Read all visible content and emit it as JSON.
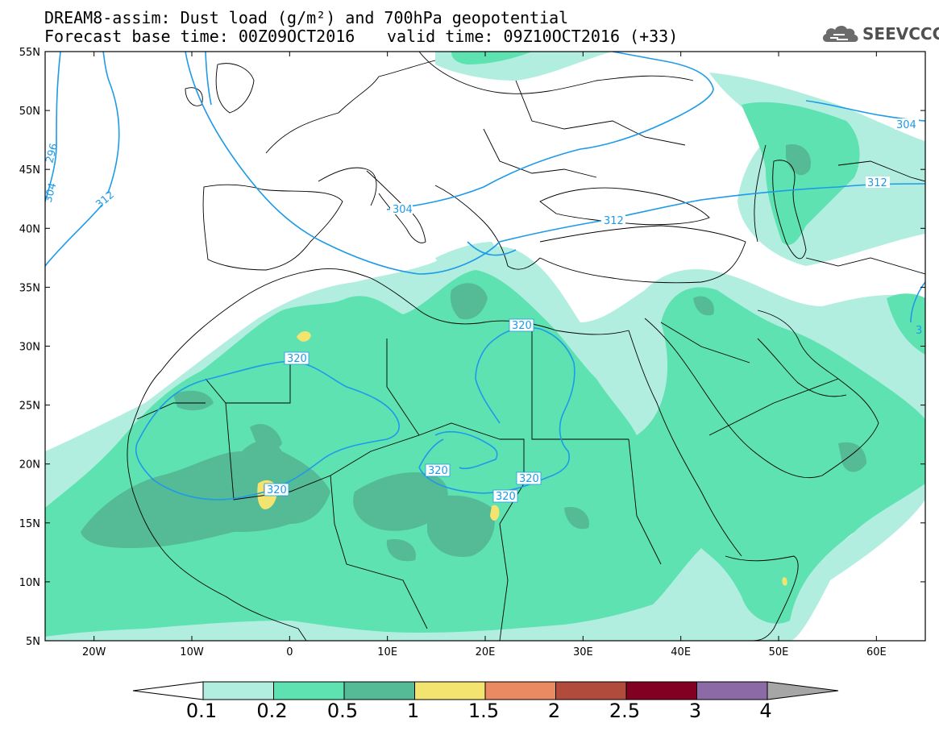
{
  "title": {
    "line1": "DREAM8-assim: Dust load (g/m²) and 700hPa geopotential",
    "line2_left": "Forecast base time: 00Z09OCT2016",
    "line2_right": "valid time: 09Z10OCT2016 (+33)"
  },
  "logo": {
    "text": "SEEVCCC",
    "icon": "cloud-icon"
  },
  "map": {
    "lon_range": [
      -25,
      65
    ],
    "lat_range": [
      5,
      55
    ],
    "lat_ticks": [
      "5N",
      "10N",
      "15N",
      "20N",
      "25N",
      "30N",
      "35N",
      "40N",
      "45N",
      "50N",
      "55N"
    ],
    "lon_ticks": [
      "20W",
      "10W",
      "0",
      "10E",
      "20E",
      "30E",
      "40E",
      "50E",
      "60E"
    ],
    "contour_labels": [
      "304",
      "312",
      "320",
      "320",
      "320",
      "320",
      "320",
      "312",
      "304",
      "312",
      "296",
      "304",
      "3"
    ]
  },
  "colorbar": {
    "labels": [
      "0.1",
      "0.2",
      "0.5",
      "1",
      "1.5",
      "2",
      "2.5",
      "3",
      "4"
    ],
    "colors": [
      "#ffffff",
      "#b2eee0",
      "#5ee2b1",
      "#55ba96",
      "#f3e46f",
      "#e98a63",
      "#b14b3c",
      "#820021",
      "#8c6aa6",
      "#a6a6a6"
    ]
  },
  "contour_color": "#1e9ae8"
}
